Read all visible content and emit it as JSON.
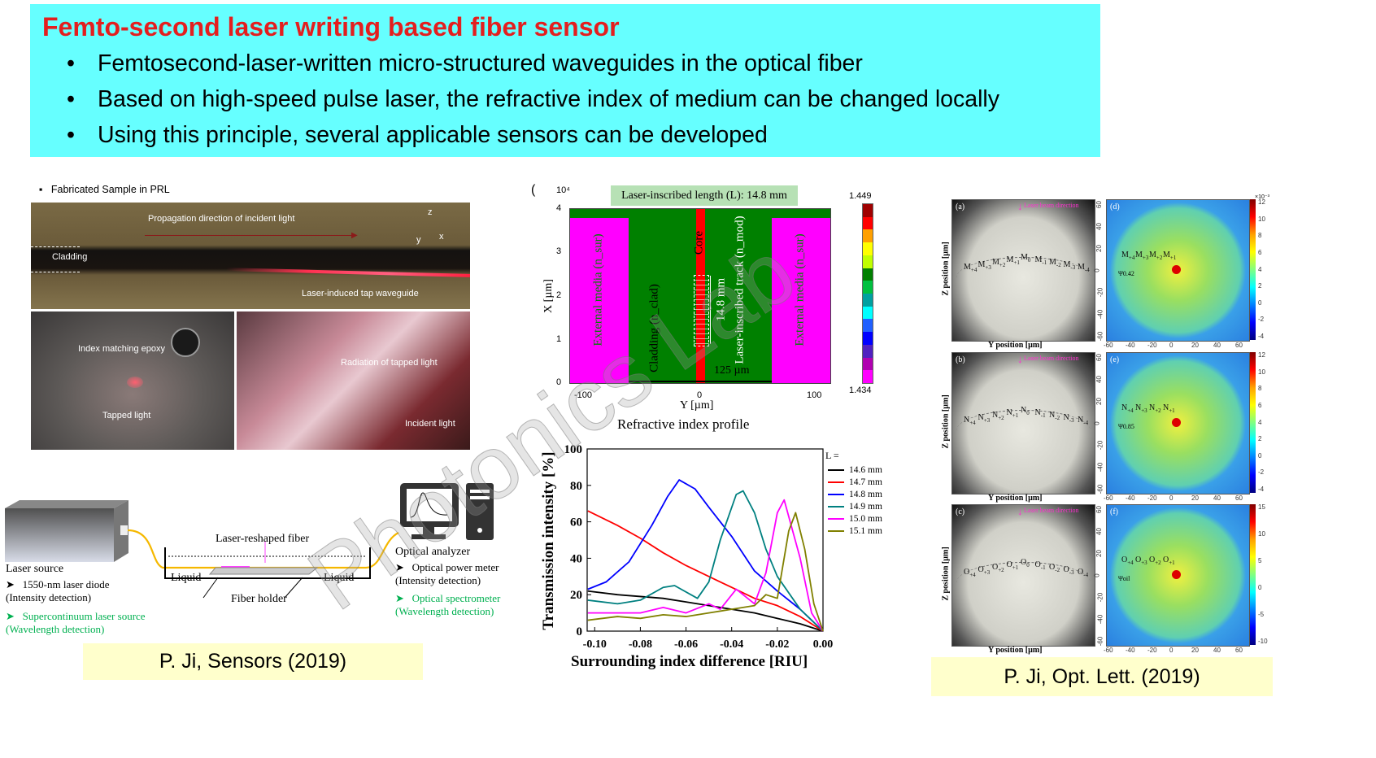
{
  "banner": {
    "title": "Femto-second laser writing based fiber sensor",
    "bullets": [
      "Femtosecond-laser-written micro-structured waveguides in the optical fiber",
      "Based on high-speed pulse laser, the refractive index of medium can be changed locally",
      "Using this principle, several applicable sensors can be developed"
    ],
    "bullet_symbol": "•",
    "background": "#66FFFF",
    "title_color": "#E41E1E"
  },
  "watermark": "Photonics Lab",
  "left": {
    "sample_heading": "Fabricated Sample in PRL",
    "photo_top": {
      "propagation": "Propagation direction of incident light",
      "cladding": "Cladding",
      "tap": "Laser-induced tap waveguide",
      "axes": {
        "z": "z",
        "y": "y",
        "x": "x"
      }
    },
    "photo_bl": {
      "epoxy": "Index matching epoxy",
      "tapped": "Tapped light"
    },
    "photo_br": {
      "radiation": "Radiation of tapped light",
      "incident": "Incident light"
    },
    "schematic": {
      "fiber": "Laser-reshaped fiber",
      "liquid_left": "Liquid",
      "liquid_right": "Liquid",
      "holder": "Fiber holder",
      "source_title": "Laser source",
      "source_items": [
        {
          "text": "1550-nm laser diode",
          "sub": "(Intensity detection)",
          "color": "#000000"
        },
        {
          "text": "Supercontinuum laser source",
          "sub": "(Wavelength detection)",
          "color": "#00B050"
        }
      ],
      "analyzer_title": "Optical analyzer",
      "analyzer_items": [
        {
          "text": "Optical power meter",
          "sub": "(Intensity detection)",
          "color": "#000000"
        },
        {
          "text": "Optical spectrometer",
          "sub": "(Wavelength detection)",
          "color": "#00B050"
        }
      ],
      "arrow_symbol": "➤"
    },
    "citation": "P. Ji, Sensors (2019)"
  },
  "middle": {
    "profile": {
      "panel_mark": "(",
      "exponent": "10⁴",
      "header": "Laser-inscribed length (L): 14.8 mm",
      "x_axis_label": "X [µm]",
      "y_axis_label": "Y [µm]",
      "caption": "Refractive index profile",
      "x_ticks": [
        "4",
        "3",
        "2",
        "1",
        "0"
      ],
      "y_ticks": [
        "-100",
        "0",
        "100"
      ],
      "regions": {
        "external_left": "External media (n_sur)",
        "cladding": "Cladding (n_clad)",
        "core": "Core",
        "track": "Laser-inscribed track (n_mod)",
        "external_right": "External media (n_sur)",
        "length": "14.8 mm",
        "diameter": "125 µm"
      },
      "colorbar": {
        "max": "1.449",
        "min": "1.434",
        "colors": [
          "#FF00FF",
          "#B000B0",
          "#5020C0",
          "#0000FF",
          "#2060FF",
          "#00FFFF",
          "#00A0A0",
          "#00C040",
          "#008000",
          "#C0FF00",
          "#FFFF00",
          "#FFA000",
          "#FF0000",
          "#A00000"
        ]
      },
      "colors": {
        "external": "#FF00FF",
        "cladding": "#008000",
        "core": "#FF0000",
        "header_bg": "#B7E1B5"
      }
    }
  },
  "chart_data": {
    "type": "line",
    "title": "",
    "xlabel": "Surrounding index difference [RIU]",
    "ylabel": "Transmission intensity [%]",
    "xlim": [
      -0.1033,
      0.0
    ],
    "ylim": [
      0,
      100
    ],
    "x_ticks": [
      "-0.10",
      "-0.08",
      "-0.06",
      "-0.04",
      "-0.02",
      "0.00"
    ],
    "y_ticks": [
      "0",
      "20",
      "40",
      "60",
      "80",
      "100"
    ],
    "legend_title": "L =",
    "legend_position": "right",
    "series": [
      {
        "name": "14.6 mm",
        "color": "#000000",
        "x": [
          -0.103,
          -0.09,
          -0.08,
          -0.07,
          -0.06,
          -0.05,
          -0.04,
          -0.03,
          -0.02,
          -0.01,
          0.0
        ],
        "y": [
          22,
          20,
          19,
          18,
          16,
          14,
          12,
          10,
          7,
          4,
          0
        ]
      },
      {
        "name": "14.7 mm",
        "color": "#FF0000",
        "x": [
          -0.103,
          -0.09,
          -0.08,
          -0.07,
          -0.06,
          -0.05,
          -0.04,
          -0.03,
          -0.02,
          -0.01,
          0.0
        ],
        "y": [
          66,
          58,
          51,
          43,
          36,
          30,
          24,
          18,
          14,
          8,
          0
        ]
      },
      {
        "name": "14.8 mm",
        "color": "#0000FF",
        "x": [
          -0.103,
          -0.095,
          -0.085,
          -0.075,
          -0.068,
          -0.063,
          -0.056,
          -0.05,
          -0.04,
          -0.03,
          -0.02,
          -0.01,
          0.0
        ],
        "y": [
          23,
          27,
          38,
          58,
          74,
          83,
          78,
          68,
          52,
          33,
          22,
          12,
          0
        ]
      },
      {
        "name": "14.9 mm",
        "color": "#008080",
        "x": [
          -0.103,
          -0.09,
          -0.08,
          -0.07,
          -0.065,
          -0.055,
          -0.05,
          -0.045,
          -0.038,
          -0.035,
          -0.03,
          -0.025,
          -0.02,
          -0.01,
          0.0
        ],
        "y": [
          17,
          15,
          17,
          24,
          25,
          18,
          27,
          50,
          75,
          77,
          65,
          45,
          30,
          12,
          0
        ]
      },
      {
        "name": "15.0 mm",
        "color": "#FF00FF",
        "x": [
          -0.103,
          -0.09,
          -0.08,
          -0.07,
          -0.06,
          -0.05,
          -0.045,
          -0.038,
          -0.03,
          -0.025,
          -0.02,
          -0.017,
          -0.01,
          -0.005,
          0.0
        ],
        "y": [
          10,
          10,
          10,
          13,
          10,
          15,
          12,
          23,
          15,
          32,
          65,
          72,
          40,
          10,
          0
        ]
      },
      {
        "name": "15.1 mm",
        "color": "#808000",
        "x": [
          -0.103,
          -0.09,
          -0.08,
          -0.07,
          -0.06,
          -0.05,
          -0.04,
          -0.03,
          -0.025,
          -0.02,
          -0.015,
          -0.012,
          -0.008,
          -0.004,
          0.0
        ],
        "y": [
          6,
          8,
          7,
          9,
          8,
          10,
          12,
          14,
          20,
          18,
          55,
          65,
          45,
          15,
          0
        ]
      }
    ]
  },
  "right": {
    "rows": [
      {
        "photo_label": "(a)",
        "map_label": "(d)",
        "prefix": "M",
        "psi": "Ψ0.42"
      },
      {
        "photo_label": "(b)",
        "map_label": "(e)",
        "prefix": "N",
        "psi": "Ψ0.85"
      },
      {
        "photo_label": "(c)",
        "map_label": "(f)",
        "prefix": "O",
        "psi": "Ψoil"
      }
    ],
    "mode_subscripts": [
      "+4",
      "+3",
      "+2",
      "+1",
      "0",
      "-1",
      "-2",
      "-3",
      "-4"
    ],
    "beam_direction": "Laser beam direction",
    "z_label": "Z position [µm]",
    "y_label": "Y position [µm]",
    "map_ticks_v": [
      "60",
      "40",
      "20",
      "0",
      "-20",
      "-40",
      "-60"
    ],
    "map_ticks_h": [
      "-60",
      "-40",
      "-20",
      "0",
      "20",
      "40",
      "60"
    ],
    "colorbar_exponent": "×10⁻³",
    "colorbar_ticks": [
      [
        "12",
        "10",
        "8",
        "6",
        "4",
        "2",
        "0",
        "-2",
        "-4"
      ],
      [
        "12",
        "10",
        "8",
        "6",
        "4",
        "2",
        "0",
        "-2",
        "-4"
      ],
      [
        "15",
        "10",
        "5",
        "0",
        "-5",
        "-10"
      ]
    ],
    "citation": "P. Ji, Opt. Lett. (2019)"
  }
}
